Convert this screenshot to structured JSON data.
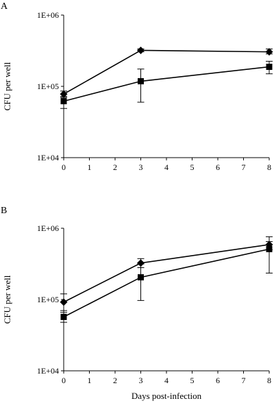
{
  "chart_data": [
    {
      "type": "line",
      "panel_label": "A",
      "ylabel": "CFU per well",
      "xlabel": "",
      "y_scale": "log",
      "ylim": [
        10000,
        1000000
      ],
      "xlim": [
        0,
        8
      ],
      "yticks": [
        10000,
        100000,
        1000000
      ],
      "ytick_labels": [
        "1E+04",
        "1E+05",
        "1E+06"
      ],
      "xticks": [
        0,
        1,
        2,
        3,
        4,
        5,
        6,
        7,
        8
      ],
      "xtick_labels": [
        "0",
        "1",
        "2",
        "3",
        "4",
        "5",
        "6",
        "7",
        "8"
      ],
      "series": [
        {
          "marker": "diamond",
          "x": [
            0,
            3,
            8
          ],
          "y": [
            78000,
            320000,
            305000
          ],
          "err_low": [
            70000,
            305000,
            285000
          ],
          "err_high": [
            86000,
            336000,
            335000
          ]
        },
        {
          "marker": "square",
          "x": [
            0,
            3,
            8
          ],
          "y": [
            62000,
            118000,
            188000
          ],
          "err_low": [
            49000,
            60000,
            150000
          ],
          "err_high": [
            72000,
            175000,
            225000
          ]
        }
      ]
    },
    {
      "type": "line",
      "panel_label": "B",
      "ylabel": "CFU per well",
      "xlabel": "Days post-infection",
      "y_scale": "log",
      "ylim": [
        10000,
        1000000
      ],
      "xlim": [
        0,
        8
      ],
      "yticks": [
        10000,
        100000,
        1000000
      ],
      "ytick_labels": [
        "1E+04",
        "1E+05",
        "1E+06"
      ],
      "xticks": [
        0,
        1,
        2,
        3,
        4,
        5,
        6,
        7,
        8
      ],
      "xtick_labels": [
        "0",
        "1",
        "2",
        "3",
        "4",
        "5",
        "6",
        "7",
        "8"
      ],
      "series": [
        {
          "marker": "diamond",
          "x": [
            0,
            3,
            8
          ],
          "y": [
            92000,
            325000,
            590000
          ],
          "err_low": [
            70000,
            280000,
            500000
          ],
          "err_high": [
            120000,
            375000,
            760000
          ]
        },
        {
          "marker": "square",
          "x": [
            0,
            3,
            8
          ],
          "y": [
            57000,
            205000,
            510000
          ],
          "err_low": [
            48000,
            97000,
            235000
          ],
          "err_high": [
            66000,
            315000,
            650000
          ]
        }
      ]
    }
  ]
}
